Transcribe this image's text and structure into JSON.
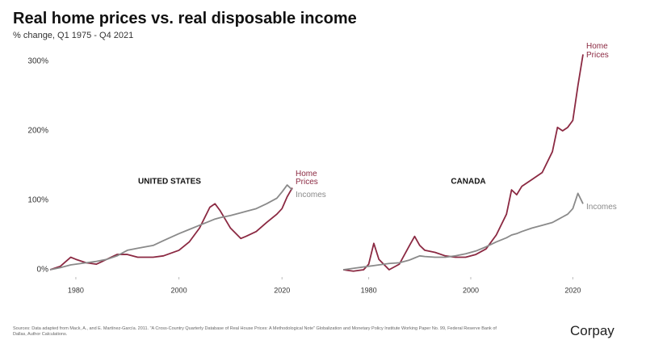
{
  "title": "Real home prices vs. real disposable income",
  "subtitle": "% change, Q1 1975 - Q4 2021",
  "source": "Sources: Data adapted from Mack, A., and E. Martínez-García. 2011. \"A Cross-Country Quarterly Database of Real House Prices: A Methodological Note\" Globalization and Monetary Policy Institute Working Paper No. 99, Federal Reserve Bank of Dallas, Author Calculations.",
  "brand": "Corpay",
  "chart_data": [
    {
      "type": "line",
      "title": "UNITED STATES",
      "x": [
        1975,
        1977,
        1979,
        1980,
        1982,
        1984,
        1986,
        1988,
        1990,
        1992,
        1995,
        1997,
        2000,
        2002,
        2004,
        2006,
        2007,
        2008,
        2010,
        2012,
        2013,
        2015,
        2017,
        2019,
        2020,
        2021,
        2022
      ],
      "series": [
        {
          "name": "Home Prices",
          "color": "#8b2942",
          "values": [
            0,
            5,
            18,
            15,
            10,
            8,
            15,
            22,
            22,
            18,
            18,
            20,
            28,
            40,
            60,
            90,
            95,
            85,
            60,
            45,
            48,
            55,
            68,
            80,
            88,
            105,
            118
          ]
        },
        {
          "name": "Incomes",
          "color": "#8a8a8a",
          "values": [
            0,
            3,
            7,
            8,
            10,
            12,
            15,
            20,
            28,
            31,
            35,
            42,
            52,
            58,
            64,
            70,
            73,
            75,
            78,
            82,
            84,
            88,
            95,
            103,
            112,
            122,
            115
          ]
        }
      ],
      "xlim": [
        1975,
        2022
      ],
      "xticks": [
        1980,
        2000,
        2020
      ],
      "ylim": [
        -5,
        320
      ],
      "yticks": [
        {
          "value": 0,
          "label": "0%"
        },
        {
          "value": 100,
          "label": "100%"
        },
        {
          "value": 200,
          "label": "200%"
        },
        {
          "value": 300,
          "label": "300%"
        }
      ]
    },
    {
      "type": "line",
      "title": "CANADA",
      "x": [
        1975,
        1977,
        1979,
        1980,
        1981,
        1982,
        1984,
        1986,
        1988,
        1989,
        1990,
        1991,
        1993,
        1995,
        1997,
        1999,
        2001,
        2003,
        2005,
        2007,
        2008,
        2009,
        2010,
        2012,
        2014,
        2016,
        2017,
        2018,
        2019,
        2020,
        2021,
        2022
      ],
      "series": [
        {
          "name": "Home Prices",
          "color": "#8b2942",
          "values": [
            0,
            -2,
            0,
            8,
            38,
            15,
            0,
            8,
            35,
            48,
            35,
            28,
            25,
            20,
            18,
            18,
            22,
            30,
            50,
            80,
            115,
            108,
            120,
            130,
            140,
            170,
            205,
            200,
            205,
            215,
            265,
            310
          ]
        },
        {
          "name": "Incomes",
          "color": "#8a8a8a",
          "values": [
            0,
            2,
            4,
            5,
            6,
            7,
            9,
            10,
            14,
            17,
            20,
            19,
            18,
            18,
            20,
            23,
            27,
            33,
            40,
            46,
            50,
            52,
            55,
            60,
            64,
            68,
            72,
            76,
            80,
            88,
            110,
            95
          ]
        }
      ],
      "xlim": [
        1975,
        2022
      ],
      "xticks": [
        1980,
        2000,
        2020
      ],
      "ylim": [
        -5,
        320
      ]
    }
  ]
}
